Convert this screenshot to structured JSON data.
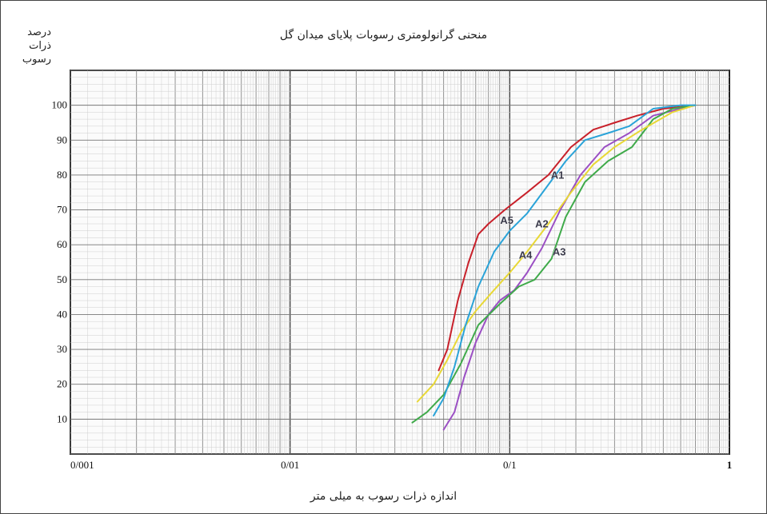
{
  "chart_data": {
    "type": "line",
    "title": "منحنی گرانولومتری رسوبات پلایای میدان گل",
    "xlabel": "اندازه ذرات رسوب  به میلی متر",
    "ylabel_lines": [
      "درصد",
      "ذرات",
      "رسوب"
    ],
    "x_scale": "log",
    "xlim": [
      0.001,
      1
    ],
    "ylim": [
      0,
      110
    ],
    "x_tick_labels": [
      "0/001",
      "0/01",
      "0/1",
      "1"
    ],
    "x_tick_values": [
      0.001,
      0.01,
      0.1,
      1
    ],
    "y_tick_labels": [
      "10",
      "20",
      "30",
      "40",
      "50",
      "60",
      "70",
      "80",
      "90",
      "100"
    ],
    "y_tick_values": [
      10,
      20,
      30,
      40,
      50,
      60,
      70,
      80,
      90,
      100
    ],
    "grid": true,
    "series": [
      {
        "name": "A1",
        "color": "#c8202a",
        "x": [
          0.0475,
          0.052,
          0.058,
          0.065,
          0.072,
          0.08,
          0.095,
          0.12,
          0.15,
          0.19,
          0.24,
          0.3,
          0.38,
          0.5,
          0.7
        ],
        "y": [
          24,
          30,
          44,
          55,
          63,
          66,
          70,
          75,
          80,
          88,
          93,
          95,
          97,
          99,
          100
        ]
      },
      {
        "name": "A2",
        "color": "#9b4fc4",
        "x": [
          0.05,
          0.056,
          0.062,
          0.07,
          0.08,
          0.09,
          0.105,
          0.12,
          0.14,
          0.17,
          0.21,
          0.27,
          0.35,
          0.45,
          0.6,
          0.7
        ],
        "y": [
          7,
          12,
          22,
          32,
          40,
          44,
          47,
          52,
          59,
          70,
          80,
          88,
          92,
          97,
          99,
          100
        ]
      },
      {
        "name": "A3",
        "color": "#3faa4a",
        "x": [
          0.036,
          0.042,
          0.05,
          0.06,
          0.072,
          0.09,
          0.11,
          0.13,
          0.155,
          0.18,
          0.22,
          0.28,
          0.36,
          0.45,
          0.55,
          0.7
        ],
        "y": [
          9,
          12,
          17,
          26,
          37,
          43,
          48,
          50,
          56,
          68,
          78,
          84,
          88,
          96,
          99,
          100
        ]
      },
      {
        "name": "A4",
        "color": "#e8d836",
        "x": [
          0.038,
          0.045,
          0.052,
          0.06,
          0.07,
          0.082,
          0.1,
          0.12,
          0.15,
          0.19,
          0.24,
          0.3,
          0.4,
          0.55,
          0.7
        ],
        "y": [
          15,
          20,
          27,
          35,
          41,
          46,
          52,
          58,
          66,
          75,
          83,
          88,
          93,
          98,
          100
        ]
      },
      {
        "name": "A5",
        "color": "#2aa3d8",
        "x": [
          0.045,
          0.05,
          0.056,
          0.063,
          0.072,
          0.085,
          0.1,
          0.12,
          0.145,
          0.18,
          0.22,
          0.28,
          0.35,
          0.45,
          0.6,
          0.7
        ],
        "y": [
          11,
          16,
          25,
          37,
          48,
          58,
          64,
          69,
          76,
          84,
          90,
          92,
          94,
          99,
          100,
          100
        ]
      }
    ],
    "annotations": [
      {
        "text": "A1",
        "x": 0.165,
        "y": 79
      },
      {
        "text": "A2",
        "x": 0.14,
        "y": 65
      },
      {
        "text": "A3",
        "x": 0.168,
        "y": 57
      },
      {
        "text": "A4",
        "x": 0.118,
        "y": 56
      },
      {
        "text": "A5",
        "x": 0.097,
        "y": 66
      }
    ]
  }
}
